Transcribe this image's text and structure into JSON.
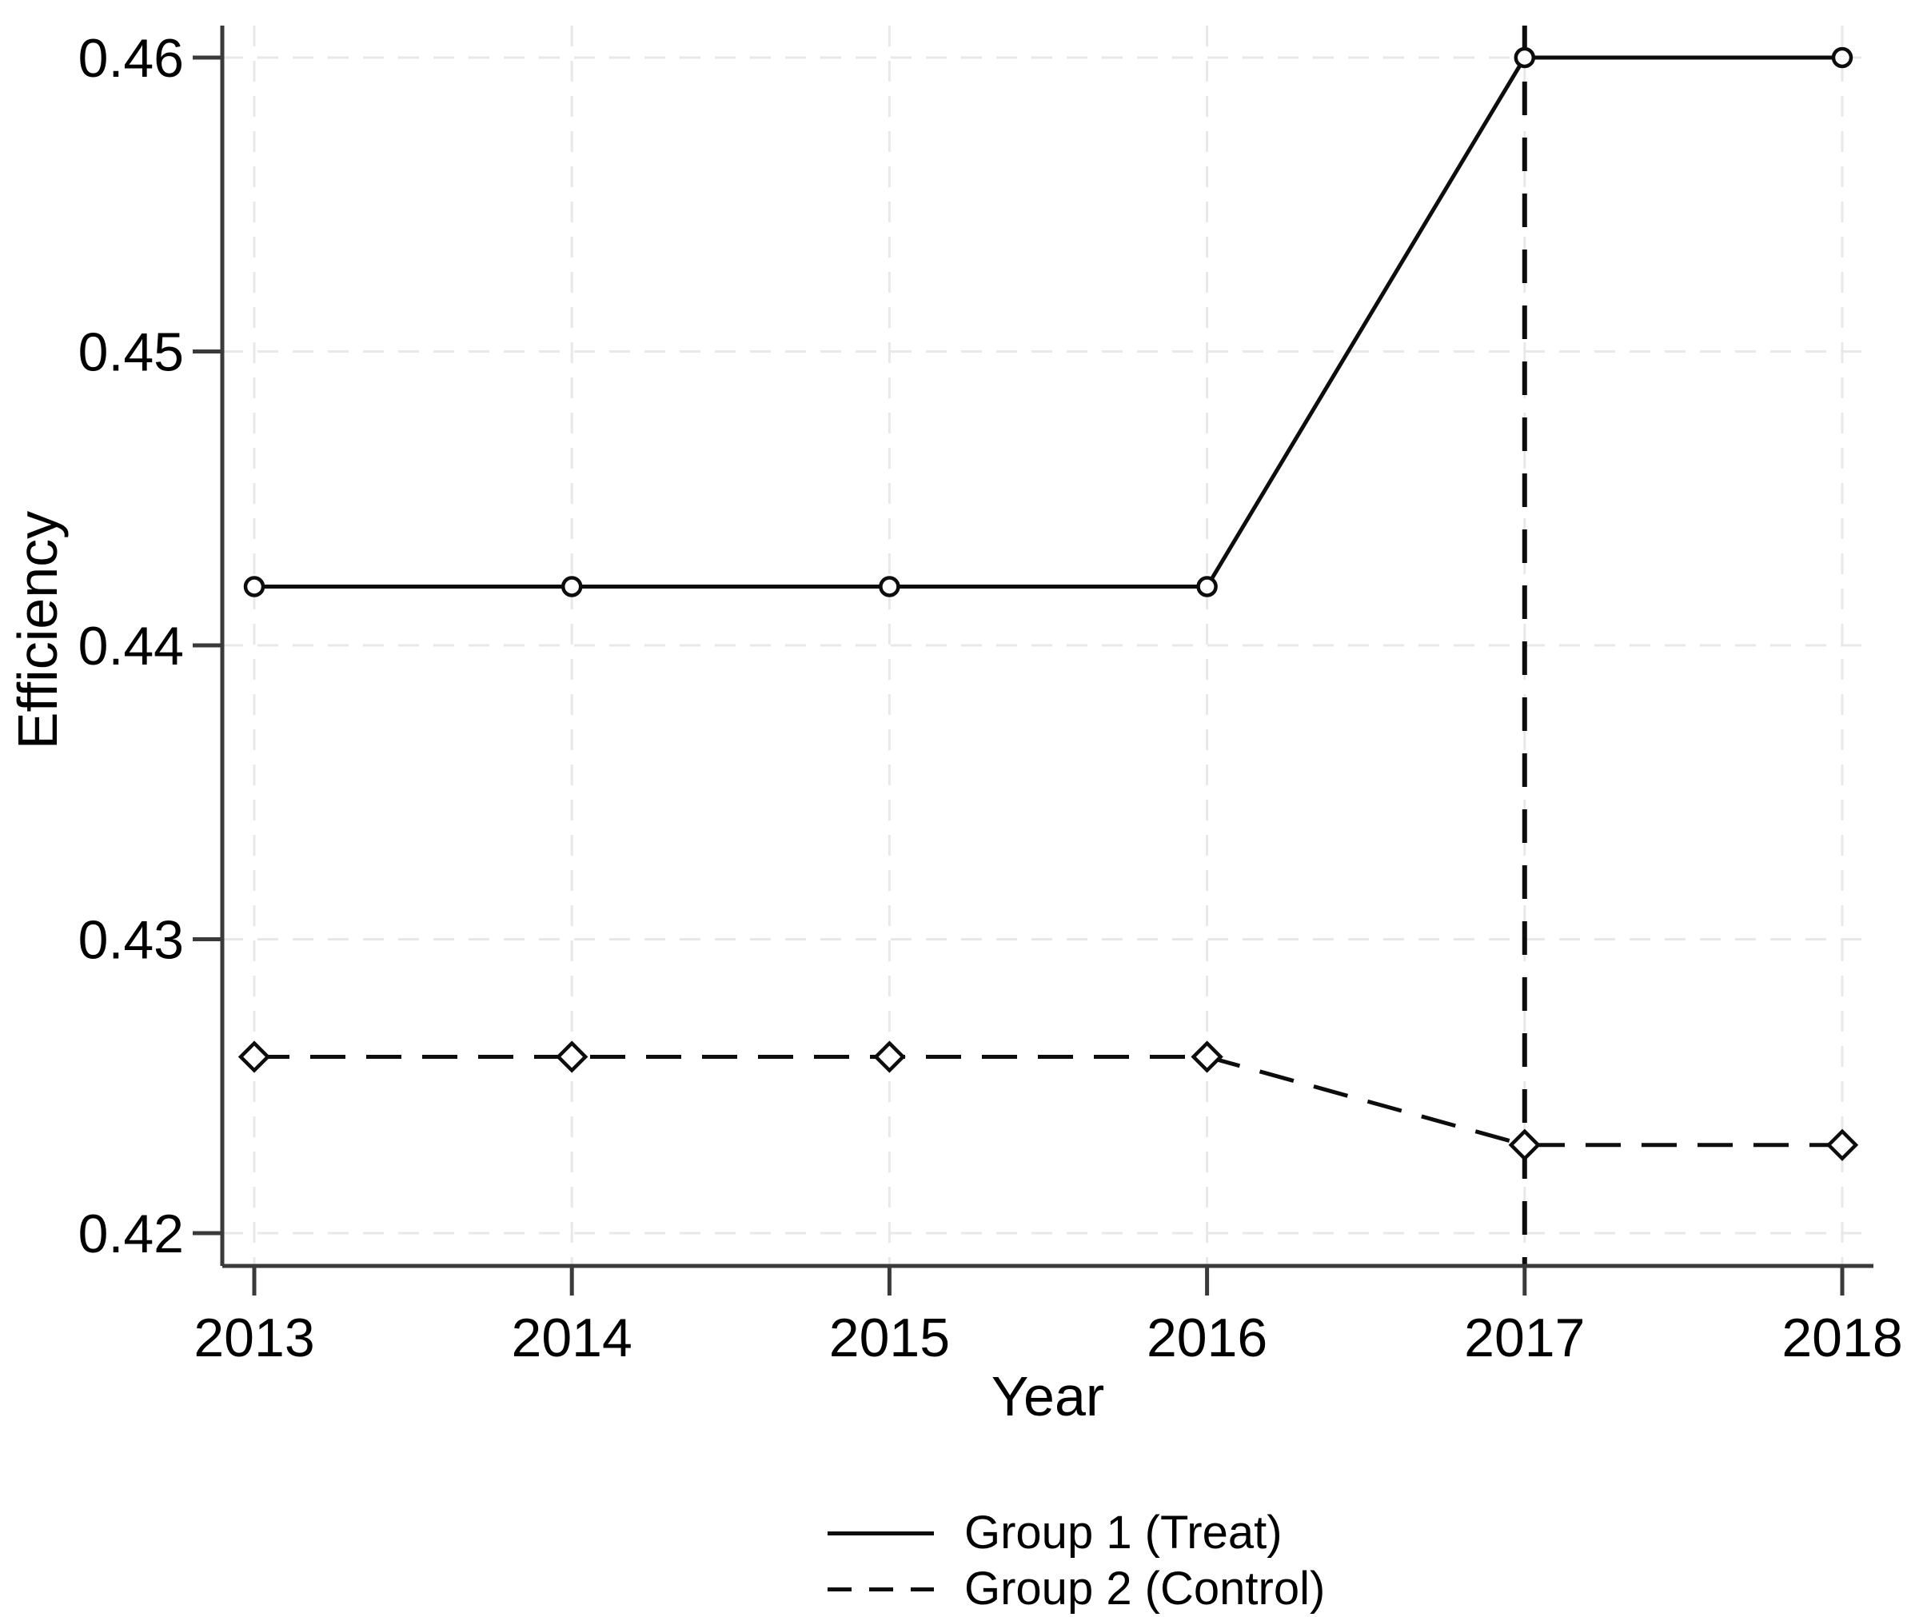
{
  "figure": {
    "background": "#ffffff",
    "text_color": "#000000",
    "axis_color": "#3a3a3a",
    "line_color": "#0d0d0d",
    "grid_color": "#e8e8e8"
  },
  "chart_data": {
    "type": "line",
    "title": "",
    "xlabel": "Year",
    "ylabel": "Efficiency",
    "x": [
      2013,
      2014,
      2015,
      2016,
      2017,
      2018
    ],
    "x_tick_labels": [
      "2013",
      "2014",
      "2015",
      "2016",
      "2017",
      "2018"
    ],
    "y_ticks": [
      0.42,
      0.43,
      0.44,
      0.45,
      0.46
    ],
    "y_tick_labels": [
      "0.42",
      "0.43",
      "0.44",
      "0.45",
      "0.46"
    ],
    "ylim": [
      0.42,
      0.46
    ],
    "grid": "both-dashed-light",
    "reference_line": {
      "axis": "x",
      "at": 2017,
      "style": "dashed-black-vertical"
    },
    "series": [
      {
        "name": "Group 1 (Treat)",
        "line_style": "solid",
        "marker": "circle",
        "values": [
          0.442,
          0.442,
          0.442,
          0.442,
          0.46,
          0.46
        ]
      },
      {
        "name": "Group 2 (Control)",
        "line_style": "dashed",
        "marker": "diamond",
        "values": [
          0.426,
          0.426,
          0.426,
          0.426,
          0.423,
          0.423
        ]
      }
    ],
    "legend_position": "bottom-center"
  }
}
